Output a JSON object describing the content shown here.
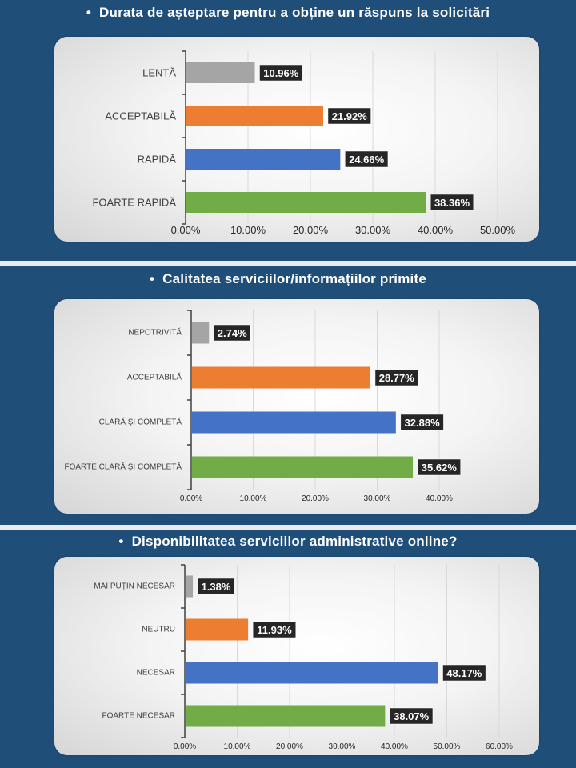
{
  "colors": {
    "gray": "#a5a5a5",
    "orange": "#ed7d31",
    "blue": "#4472c4",
    "green": "#70ad47",
    "label_bg": "#262626",
    "background": "#1f4e79"
  },
  "chart_data": [
    {
      "type": "bar",
      "title": "Durata de așteptare pentru a obține un răspuns la solicitări",
      "categories": [
        "LENTĂ",
        "ACCEPTABILĂ",
        "RAPIDĂ",
        "FOARTE RAPIDĂ"
      ],
      "values": [
        10.96,
        21.92,
        24.66,
        38.36
      ],
      "data_labels": [
        "10.96%",
        "21.92%",
        "24.66%",
        "38.36%"
      ],
      "bar_colors": [
        "gray",
        "orange",
        "blue",
        "green"
      ],
      "xlim": [
        0,
        50
      ],
      "x_ticks": [
        "0.00%",
        "10.00%",
        "20.00%",
        "30.00%",
        "40.00%",
        "50.00%"
      ],
      "orientation": "horizontal",
      "grid": true
    },
    {
      "type": "bar",
      "title": "Calitatea serviciilor/informațiilor primite",
      "categories": [
        "NEPOTRIVITĂ",
        "ACCEPTABILĂ",
        "CLARĂ ȘI COMPLETĂ",
        "FOARTE CLARĂ ȘI COMPLETĂ"
      ],
      "values": [
        2.74,
        28.77,
        32.88,
        35.62
      ],
      "data_labels": [
        "2.74%",
        "28.77%",
        "32.88%",
        "35.62%"
      ],
      "bar_colors": [
        "gray",
        "orange",
        "blue",
        "green"
      ],
      "xlim": [
        0,
        40
      ],
      "x_ticks": [
        "0.00%",
        "10.00%",
        "20.00%",
        "30.00%",
        "40.00%"
      ],
      "orientation": "horizontal",
      "grid": true
    },
    {
      "type": "bar",
      "title": "Disponibilitatea serviciilor administrative online?",
      "categories": [
        "MAI PUȚIN NECESAR",
        "NEUTRU",
        "NECESAR",
        "FOARTE NECESAR"
      ],
      "values": [
        1.38,
        11.93,
        48.17,
        38.07
      ],
      "data_labels": [
        "1.38%",
        "11.93%",
        "48.17%",
        "38.07%"
      ],
      "bar_colors": [
        "gray",
        "orange",
        "blue",
        "green"
      ],
      "xlim": [
        0,
        60
      ],
      "x_ticks": [
        "0.00%",
        "10.00%",
        "20.00%",
        "30.00%",
        "40.00%",
        "50.00%",
        "60.00%"
      ],
      "orientation": "horizontal",
      "grid": true
    }
  ]
}
